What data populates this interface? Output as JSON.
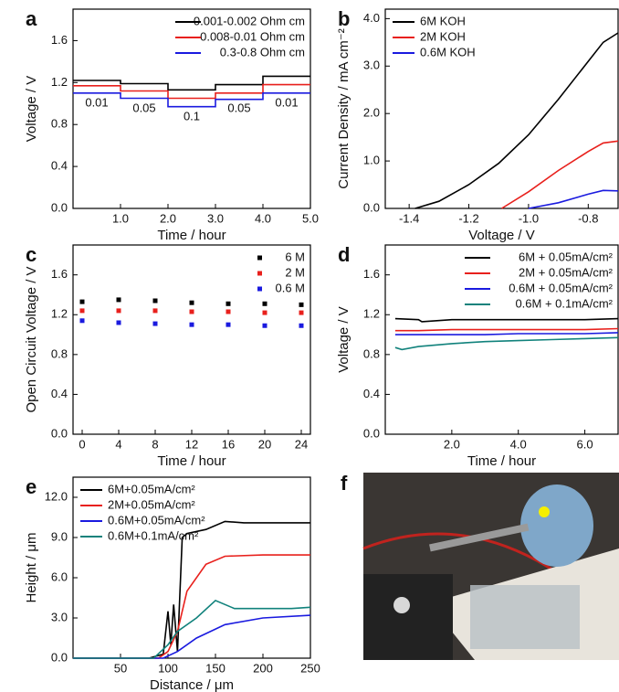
{
  "chart_data": [
    {
      "type": "line",
      "panel_label": "a",
      "xlabel": "Time / hour",
      "ylabel": "Voltage / V",
      "xlim": [
        0,
        5
      ],
      "xticks": [
        {
          "value": 1,
          "label": "1.0"
        },
        {
          "value": 2,
          "label": "2.0"
        },
        {
          "value": 3,
          "label": "3.0"
        },
        {
          "value": 4,
          "label": "4.0"
        },
        {
          "value": 5,
          "label": "5.0"
        }
      ],
      "ylim": [
        0,
        1.9
      ],
      "yticks": [
        {
          "value": 0,
          "label": "0.0"
        },
        0.4,
        0.8,
        1.2,
        1.6
      ],
      "legend": "upper right",
      "annotations": [
        "0.01",
        "0.05",
        "0.1",
        "0.05",
        "0.01"
      ],
      "series": [
        {
          "name": "0.001-0.002 Ohm cm",
          "color": "#000000",
          "x": [
            0,
            1,
            1,
            2,
            2,
            3,
            3,
            4,
            4,
            5
          ],
          "values": [
            1.22,
            1.22,
            1.19,
            1.19,
            1.13,
            1.13,
            1.18,
            1.18,
            1.26,
            1.26
          ]
        },
        {
          "name": "0.008-0.01 Ohm cm",
          "color": "#e8201c",
          "x": [
            0,
            1,
            1,
            2,
            2,
            3,
            3,
            4,
            4,
            5
          ],
          "values": [
            1.17,
            1.17,
            1.12,
            1.12,
            1.05,
            1.05,
            1.1,
            1.1,
            1.18,
            1.18
          ]
        },
        {
          "name": "0.3-0.8 Ohm cm",
          "color": "#1a1adf",
          "x": [
            0,
            1,
            1,
            2,
            2,
            3,
            3,
            4,
            4,
            5
          ],
          "values": [
            1.1,
            1.1,
            1.05,
            1.05,
            0.97,
            0.97,
            1.04,
            1.04,
            1.1,
            1.1
          ]
        }
      ]
    },
    {
      "type": "line",
      "panel_label": "b",
      "xlabel": "Voltage / V",
      "ylabel": "Current Density / mA cm⁻²",
      "xlim": [
        -1.48,
        -0.7
      ],
      "xticks": [
        -1.4,
        -1.2,
        {
          "value": -1,
          "label": "-1.0"
        },
        -0.8
      ],
      "ylim": [
        0,
        4.2
      ],
      "yticks": [
        {
          "value": 0,
          "label": "0.0"
        },
        {
          "value": 1,
          "label": "1.0"
        },
        {
          "value": 2,
          "label": "2.0"
        },
        {
          "value": 3,
          "label": "3.0"
        },
        {
          "value": 4,
          "label": "4.0"
        }
      ],
      "legend": "upper left",
      "series": [
        {
          "name": "6M KOH",
          "color": "#000000",
          "x": [
            -1.38,
            -1.3,
            -1.2,
            -1.1,
            -1.0,
            -0.9,
            -0.8,
            -0.75,
            -0.7
          ],
          "values": [
            0,
            0.15,
            0.5,
            0.95,
            1.55,
            2.3,
            3.1,
            3.5,
            3.7
          ]
        },
        {
          "name": "2M KOH",
          "color": "#e8201c",
          "x": [
            -1.09,
            -1.0,
            -0.9,
            -0.8,
            -0.75,
            -0.7
          ],
          "values": [
            0,
            0.35,
            0.8,
            1.2,
            1.38,
            1.42
          ]
        },
        {
          "name": "0.6M KOH",
          "color": "#1a1adf",
          "x": [
            -1.0,
            -0.9,
            -0.8,
            -0.75,
            -0.7
          ],
          "values": [
            0,
            0.12,
            0.3,
            0.38,
            0.37
          ]
        }
      ]
    },
    {
      "type": "scatter",
      "panel_label": "c",
      "xlabel": "Time / hour",
      "ylabel": "Open Circuit Voltage / V",
      "xlim": [
        -1,
        25
      ],
      "xticks": [
        0,
        4,
        8,
        12,
        16,
        20,
        24
      ],
      "ylim": [
        0,
        1.9
      ],
      "yticks": [
        {
          "value": 0,
          "label": "0.0"
        },
        0.4,
        0.8,
        1.2,
        1.6
      ],
      "legend": "upper right",
      "x": [
        0,
        4,
        8,
        12,
        16,
        20,
        24
      ],
      "series": [
        {
          "name": "6 M",
          "color": "#000000",
          "values": [
            1.33,
            1.35,
            1.34,
            1.32,
            1.31,
            1.31,
            1.3
          ]
        },
        {
          "name": "2 M",
          "color": "#e8201c",
          "values": [
            1.24,
            1.24,
            1.24,
            1.23,
            1.23,
            1.22,
            1.22
          ]
        },
        {
          "name": "0.6 M",
          "color": "#1a1adf",
          "values": [
            1.14,
            1.12,
            1.11,
            1.1,
            1.1,
            1.09,
            1.09
          ]
        }
      ]
    },
    {
      "type": "line",
      "panel_label": "d",
      "xlabel": "Time / hour",
      "ylabel": "Voltage / V",
      "xlim": [
        0,
        7
      ],
      "xticks": [
        {
          "value": 2,
          "label": "2.0"
        },
        {
          "value": 4,
          "label": "4.0"
        },
        {
          "value": 6,
          "label": "6.0"
        }
      ],
      "ylim": [
        0,
        1.9
      ],
      "yticks": [
        {
          "value": 0,
          "label": "0.0"
        },
        0.4,
        0.8,
        1.2,
        1.6
      ],
      "legend": "upper right",
      "series": [
        {
          "name": "6M + 0.05mA/cm²",
          "color": "#000000",
          "x": [
            0.3,
            1,
            1.1,
            2,
            3,
            4,
            5,
            6,
            7
          ],
          "values": [
            1.16,
            1.15,
            1.13,
            1.15,
            1.15,
            1.15,
            1.15,
            1.15,
            1.16
          ]
        },
        {
          "name": "2M + 0.05mA/cm²",
          "color": "#e8201c",
          "x": [
            0.3,
            1,
            2,
            3,
            4,
            5,
            6,
            7
          ],
          "values": [
            1.04,
            1.04,
            1.05,
            1.05,
            1.05,
            1.05,
            1.05,
            1.06
          ]
        },
        {
          "name": "0.6M + 0.05mA/cm²",
          "color": "#1a1adf",
          "x": [
            0.3,
            1,
            2,
            3,
            4,
            5,
            6,
            7
          ],
          "values": [
            1.0,
            1.0,
            1.0,
            1.0,
            1.01,
            1.01,
            1.01,
            1.02
          ]
        },
        {
          "name": "0.6M + 0.1mA/cm²",
          "color": "#11827c",
          "x": [
            0.3,
            0.5,
            1,
            2,
            3,
            4,
            5,
            6,
            7
          ],
          "values": [
            0.87,
            0.85,
            0.88,
            0.91,
            0.93,
            0.94,
            0.95,
            0.96,
            0.97
          ]
        }
      ]
    },
    {
      "type": "line",
      "panel_label": "e",
      "xlabel": "Distance / μm",
      "ylabel": "Height / μm",
      "xlim": [
        0,
        250
      ],
      "xticks": [
        50,
        100,
        150,
        200,
        250
      ],
      "ylim": [
        0,
        13.5
      ],
      "yticks": [
        {
          "value": 0,
          "label": "0.0"
        },
        {
          "value": 3,
          "label": "3.0"
        },
        {
          "value": 6,
          "label": "6.0"
        },
        {
          "value": 9,
          "label": "9.0"
        },
        {
          "value": 12,
          "label": "12.0"
        }
      ],
      "legend": "upper left",
      "series": [
        {
          "name": "6M+0.05mA/cm²",
          "color": "#000000",
          "x": [
            0,
            80,
            95,
            100,
            103,
            106,
            110,
            115,
            120,
            140,
            160,
            180,
            250
          ],
          "values": [
            0,
            0,
            0.3,
            3.5,
            1,
            4,
            0.5,
            9,
            9.3,
            9.6,
            10.2,
            10.1,
            10.1
          ]
        },
        {
          "name": "2M+0.05mA/cm²",
          "color": "#e8201c",
          "x": [
            0,
            90,
            100,
            110,
            120,
            140,
            160,
            200,
            250
          ],
          "values": [
            0,
            0,
            0.5,
            2,
            5,
            7,
            7.6,
            7.7,
            7.7
          ]
        },
        {
          "name": "0.6M+0.05mA/cm²",
          "color": "#1a1adf",
          "x": [
            0,
            95,
            110,
            130,
            160,
            200,
            250
          ],
          "values": [
            0,
            0,
            0.5,
            1.5,
            2.5,
            3.0,
            3.2
          ]
        },
        {
          "name": "0.6M+0.1mA/cm²",
          "color": "#11827c",
          "x": [
            0,
            85,
            100,
            110,
            130,
            150,
            170,
            200,
            230,
            250
          ],
          "values": [
            0,
            0,
            1,
            2,
            3,
            4.3,
            3.7,
            3.7,
            3.7,
            3.8
          ]
        }
      ]
    }
  ],
  "photo": {
    "panel_label": "f"
  }
}
